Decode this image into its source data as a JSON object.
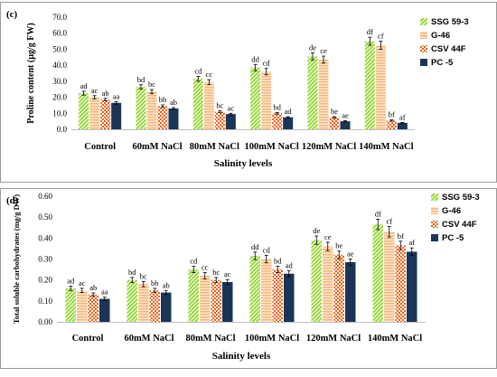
{
  "chart_data": [
    {
      "type": "bar",
      "panel_label": "(c)",
      "ylabel": "Proline content (µg/g FW)",
      "xlabel": "Salinity levels",
      "ylim": [
        0,
        70
      ],
      "yticks": [
        "0.0",
        "10.0",
        "20.0",
        "30.0",
        "40.0",
        "50.0",
        "60.0",
        "70.0"
      ],
      "categories": [
        "Control",
        "60mM NaCl",
        "80mM NaCl",
        "100mM NaCl",
        "120mM NaCl",
        "140mM NaCl"
      ],
      "series": [
        {
          "name": "SSG 59-3",
          "color": "#8fd62a",
          "pattern": "diag",
          "values": [
            22.5,
            26.5,
            31.5,
            38.5,
            45.5,
            55.0
          ],
          "errors": [
            1.2,
            1.3,
            1.5,
            2.0,
            2.2,
            2.5
          ],
          "labels": [
            "ad",
            "bd",
            "cd",
            "dd",
            "de",
            "df"
          ]
        },
        {
          "name": "G-46",
          "color": "#f6b57a",
          "pattern": "horiz",
          "values": [
            20.0,
            23.5,
            29.5,
            36.0,
            43.5,
            52.5
          ],
          "errors": [
            1.0,
            1.3,
            1.5,
            2.0,
            2.2,
            2.5
          ],
          "labels": [
            "ac",
            "bc",
            "cc",
            "cd",
            "ce",
            "cf"
          ]
        },
        {
          "name": "CSV 44F",
          "color": "#f06010",
          "pattern": "check",
          "values": [
            18.5,
            14.5,
            11.0,
            10.0,
            7.5,
            5.5
          ],
          "errors": [
            0.8,
            0.7,
            0.5,
            0.5,
            0.4,
            0.4
          ],
          "labels": [
            "ab",
            "bb",
            "bc",
            "bd",
            "be",
            "bf"
          ]
        },
        {
          "name": "PC -5",
          "color": "#1a3556",
          "pattern": "solid",
          "values": [
            16.5,
            13.0,
            9.5,
            7.5,
            5.0,
            4.0
          ],
          "errors": [
            0.8,
            0.6,
            0.5,
            0.4,
            0.4,
            0.3
          ],
          "labels": [
            "aa",
            "ab",
            "ac",
            "ad",
            "ae",
            "af"
          ]
        }
      ]
    },
    {
      "type": "bar",
      "panel_label": "(d)",
      "ylabel": "Total soluble carbohydrates (mg/g DW)",
      "xlabel": "Salinity levels",
      "ylim": [
        0,
        0.6
      ],
      "yticks": [
        "0.00",
        "0.10",
        "0.20",
        "0.30",
        "0.40",
        "0.50",
        "0.60"
      ],
      "categories": [
        "Control",
        "60mM NaCl",
        "80mM NaCl",
        "100mM NaCl",
        "120mM NaCl",
        "140mM NaCl"
      ],
      "series": [
        {
          "name": "SSG 59-3",
          "color": "#8fd62a",
          "pattern": "diag",
          "values": [
            0.16,
            0.2,
            0.25,
            0.315,
            0.39,
            0.465
          ],
          "errors": [
            0.01,
            0.012,
            0.015,
            0.018,
            0.02,
            0.025
          ],
          "labels": [
            "ad",
            "bd",
            "cd",
            "dd",
            "de",
            "df"
          ]
        },
        {
          "name": "G-46",
          "color": "#f6b57a",
          "pattern": "horiz",
          "values": [
            0.15,
            0.18,
            0.22,
            0.3,
            0.36,
            0.43
          ],
          "errors": [
            0.01,
            0.012,
            0.015,
            0.018,
            0.02,
            0.025
          ],
          "labels": [
            "ac",
            "bc",
            "cc",
            "cd",
            "ce",
            "cf"
          ]
        },
        {
          "name": "CSV 44F",
          "color": "#f06010",
          "pattern": "check",
          "values": [
            0.13,
            0.15,
            0.2,
            0.25,
            0.32,
            0.365
          ],
          "errors": [
            0.008,
            0.01,
            0.012,
            0.015,
            0.018,
            0.02
          ],
          "labels": [
            "ab",
            "bb",
            "bc",
            "bd",
            "be",
            "bf"
          ]
        },
        {
          "name": "PC -5",
          "color": "#1a3556",
          "pattern": "solid",
          "values": [
            0.11,
            0.14,
            0.19,
            0.23,
            0.285,
            0.335
          ],
          "errors": [
            0.008,
            0.01,
            0.012,
            0.014,
            0.015,
            0.018
          ],
          "labels": [
            "aa",
            "ab",
            "ac",
            "ad",
            "ae",
            "af"
          ]
        }
      ]
    }
  ]
}
